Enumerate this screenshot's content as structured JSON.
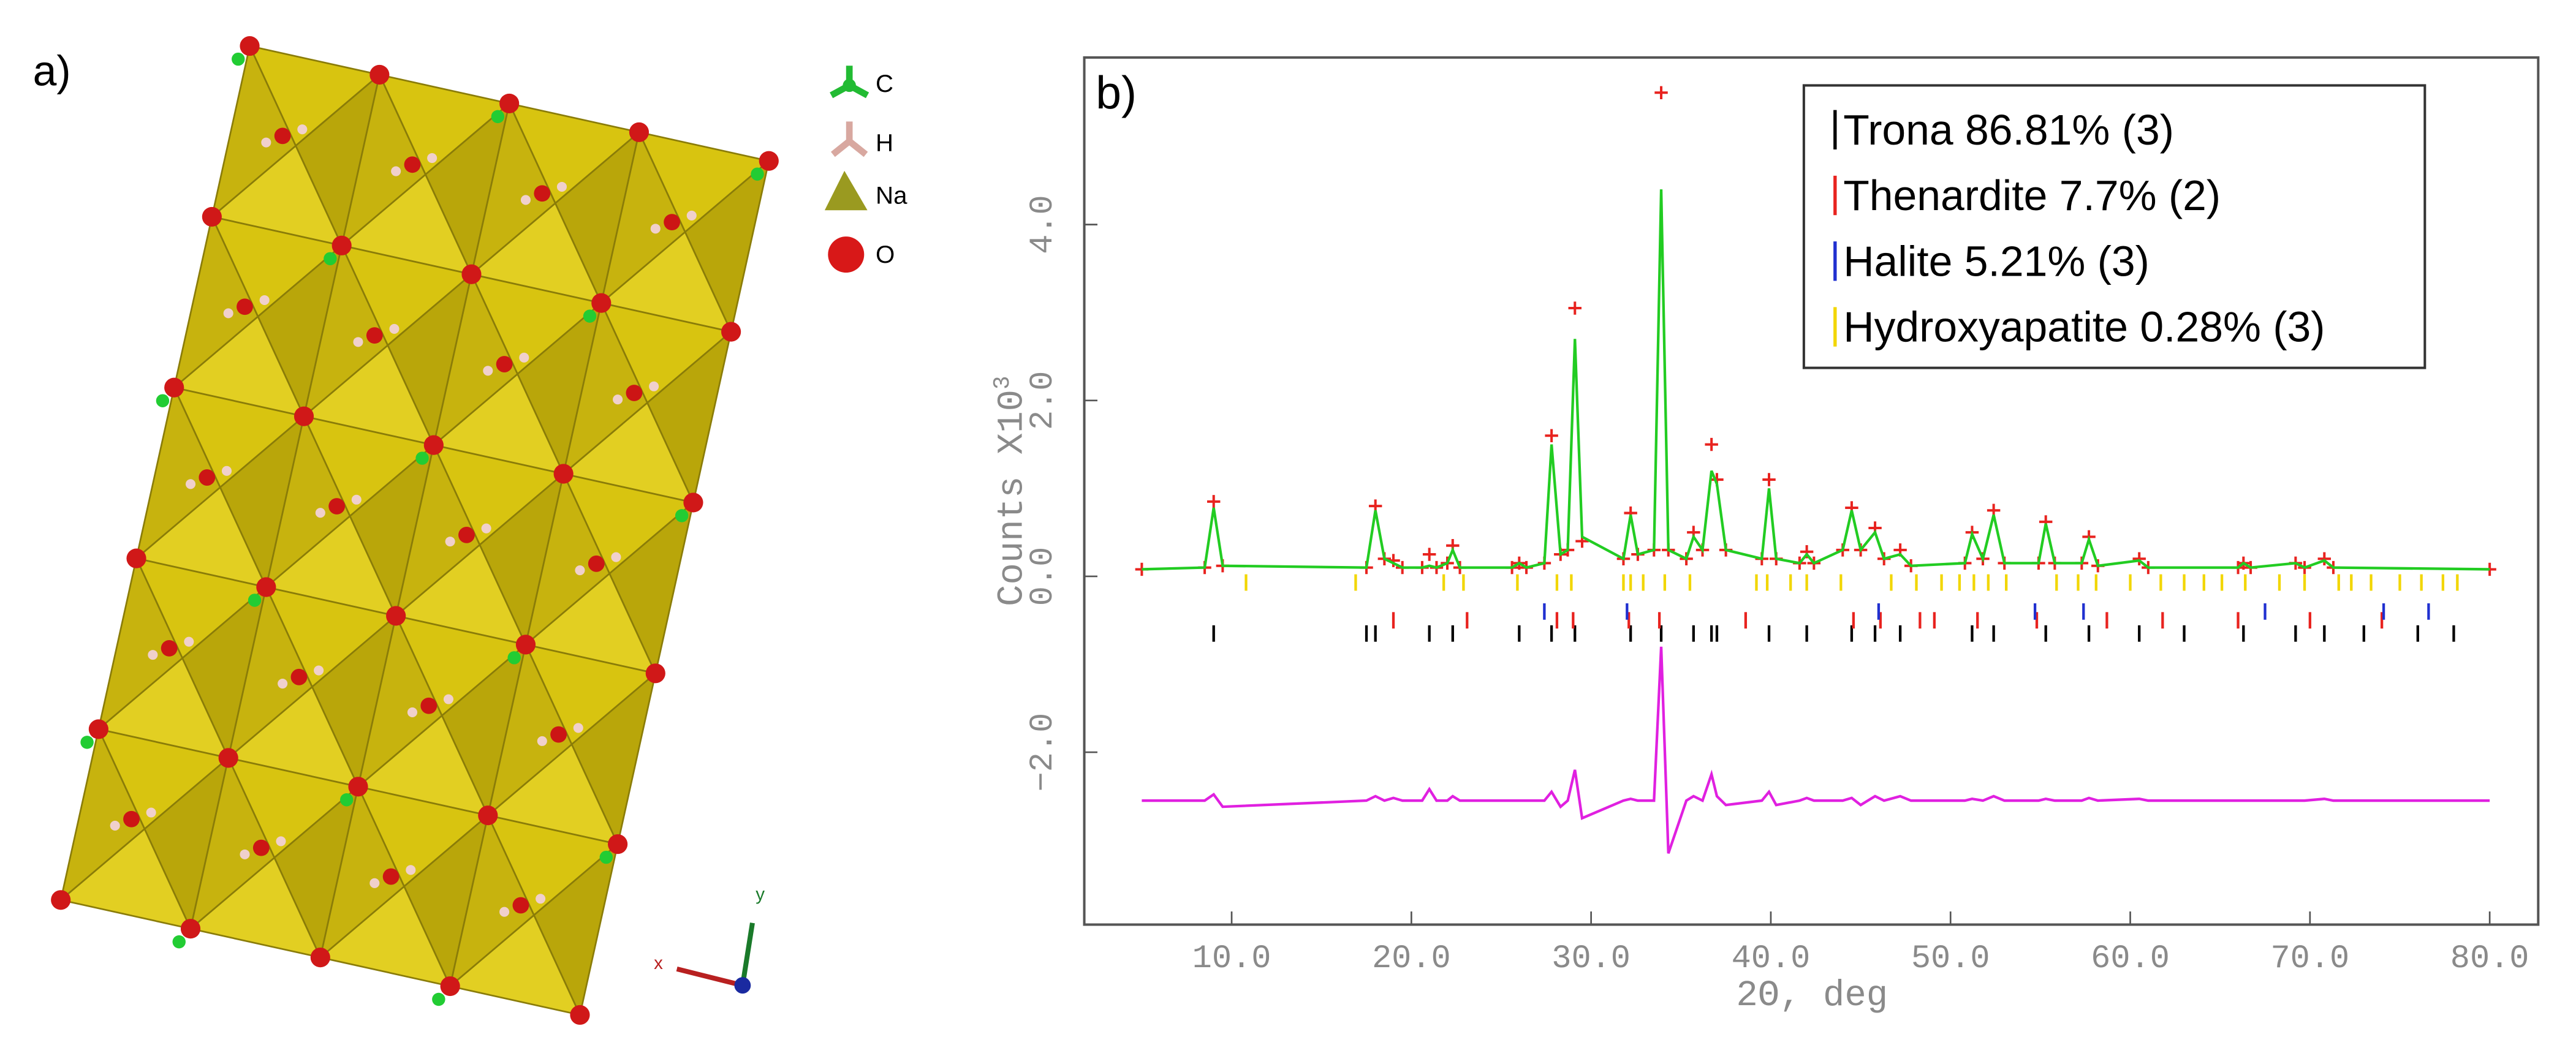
{
  "structure": {
    "label": "a)",
    "legend": [
      "C",
      "H",
      "Na",
      "O"
    ],
    "axes": [
      "x",
      "y"
    ]
  },
  "chart_data": {
    "type": "rietveld",
    "label": "b)",
    "xlabel": "2Θ, deg",
    "ylabel": "Counts X10",
    "ylabel_exponent": "3",
    "xlim": [
      1.8,
      82.7
    ],
    "ylim": [
      -3.96,
      5.9
    ],
    "xticks": [
      {
        "value": 10,
        "label": "10.0"
      },
      {
        "value": 20,
        "label": "20.0"
      },
      {
        "value": 30,
        "label": "30.0"
      },
      {
        "value": 40,
        "label": "40.0"
      },
      {
        "value": 50,
        "label": "50.0"
      },
      {
        "value": 60,
        "label": "60.0"
      },
      {
        "value": 70,
        "label": "70.0"
      },
      {
        "value": 80,
        "label": "80.0"
      }
    ],
    "yticks": [
      {
        "value": -2,
        "label": "−2.0"
      },
      {
        "value": 0,
        "label": "0.0"
      },
      {
        "value": 2,
        "label": "2.0"
      },
      {
        "value": 4,
        "label": "4.0"
      }
    ],
    "x": [
      5,
      8.5,
      9.0,
      9.5,
      17.5,
      18.0,
      18.5,
      19.0,
      19.5,
      20.6,
      21.0,
      21.4,
      22.0,
      22.3,
      22.7,
      25.6,
      26.0,
      26.4,
      27.4,
      27.8,
      28.3,
      28.7,
      29.1,
      29.5,
      31.8,
      32.2,
      32.6,
      33.5,
      33.9,
      34.3,
      35.3,
      35.7,
      36.2,
      36.7,
      37.0,
      37.5,
      39.5,
      39.9,
      40.3,
      41.6,
      42.0,
      42.4,
      44.0,
      44.5,
      45.0,
      45.8,
      46.3,
      47.2,
      47.8,
      50.8,
      51.2,
      51.8,
      52.4,
      53.0,
      54.9,
      55.3,
      55.8,
      57.3,
      57.7,
      58.2,
      60.5,
      61.0,
      66.0,
      66.3,
      66.7,
      69.2,
      69.7,
      70.8,
      71.3,
      80
    ],
    "series": [
      {
        "role": "observed",
        "color": "#e8231f",
        "values": [
          0.08,
          0.1,
          0.85,
          0.12,
          0.1,
          0.8,
          0.2,
          0.18,
          0.1,
          0.1,
          0.25,
          0.1,
          0.15,
          0.35,
          0.1,
          0.1,
          0.15,
          0.1,
          0.15,
          1.6,
          0.25,
          0.3,
          3.05,
          0.4,
          0.2,
          0.72,
          0.25,
          0.3,
          5.5,
          0.3,
          0.2,
          0.5,
          0.3,
          1.5,
          1.1,
          0.3,
          0.2,
          1.1,
          0.2,
          0.15,
          0.28,
          0.15,
          0.3,
          0.78,
          0.3,
          0.55,
          0.2,
          0.3,
          0.12,
          0.15,
          0.5,
          0.2,
          0.75,
          0.15,
          0.15,
          0.62,
          0.15,
          0.15,
          0.45,
          0.12,
          0.2,
          0.1,
          0.1,
          0.15,
          0.1,
          0.15,
          0.1,
          0.2,
          0.1,
          0.08
        ]
      },
      {
        "role": "calculated",
        "color": "#22cc22",
        "values": [
          0.08,
          0.1,
          0.78,
          0.12,
          0.1,
          0.75,
          0.2,
          0.15,
          0.1,
          0.1,
          0.12,
          0.1,
          0.15,
          0.3,
          0.1,
          0.1,
          0.15,
          0.1,
          0.15,
          1.5,
          0.25,
          0.3,
          2.7,
          0.45,
          0.2,
          0.7,
          0.25,
          0.3,
          4.4,
          0.3,
          0.2,
          0.45,
          0.3,
          1.2,
          1.05,
          0.3,
          0.2,
          1.0,
          0.2,
          0.15,
          0.25,
          0.15,
          0.3,
          0.75,
          0.3,
          0.5,
          0.2,
          0.25,
          0.12,
          0.15,
          0.48,
          0.2,
          0.7,
          0.15,
          0.15,
          0.6,
          0.15,
          0.15,
          0.42,
          0.12,
          0.18,
          0.1,
          0.1,
          0.15,
          0.1,
          0.15,
          0.1,
          0.18,
          0.1,
          0.08
        ]
      },
      {
        "role": "difference",
        "color": "#e020e0",
        "values": [
          -2.55,
          -2.55,
          -2.48,
          -2.62,
          -2.55,
          -2.5,
          -2.55,
          -2.52,
          -2.55,
          -2.55,
          -2.42,
          -2.55,
          -2.55,
          -2.5,
          -2.55,
          -2.55,
          -2.55,
          -2.55,
          -2.55,
          -2.45,
          -2.62,
          -2.55,
          -2.2,
          -2.75,
          -2.55,
          -2.53,
          -2.55,
          -2.55,
          -0.8,
          -3.15,
          -2.55,
          -2.5,
          -2.55,
          -2.25,
          -2.5,
          -2.6,
          -2.55,
          -2.45,
          -2.6,
          -2.55,
          -2.52,
          -2.55,
          -2.55,
          -2.52,
          -2.6,
          -2.5,
          -2.55,
          -2.5,
          -2.55,
          -2.55,
          -2.53,
          -2.55,
          -2.5,
          -2.55,
          -2.55,
          -2.53,
          -2.55,
          -2.55,
          -2.52,
          -2.55,
          -2.53,
          -2.55,
          -2.55,
          -2.55,
          -2.55,
          -2.55,
          -2.55,
          -2.53,
          -2.55,
          -2.55
        ]
      }
    ],
    "phases": [
      {
        "name": "Trona 86.81% (3)",
        "color": "#000000",
        "level": -0.65,
        "positions": [
          9.0,
          17.5,
          18.0,
          21.0,
          22.3,
          26.0,
          27.8,
          29.1,
          32.2,
          33.9,
          35.7,
          36.7,
          37.0,
          39.9,
          42.0,
          44.5,
          45.8,
          47.2,
          51.2,
          52.4,
          55.3,
          57.7,
          60.5,
          63.0,
          66.3,
          69.2,
          70.8,
          73.0,
          76.0,
          78.0
        ]
      },
      {
        "name": "Thenardite 7.7% (2)",
        "color": "#e8231f",
        "level": -0.5,
        "positions": [
          19.0,
          23.1,
          28.1,
          29.0,
          32.1,
          33.8,
          38.6,
          44.6,
          46.1,
          48.3,
          49.1,
          51.5,
          54.8,
          58.7,
          61.8,
          66.0,
          70.0,
          74.0
        ]
      },
      {
        "name": "Halite 5.21% (3)",
        "color": "#2030d0",
        "level": -0.4,
        "positions": [
          27.4,
          32.0,
          46.0,
          54.7,
          57.4,
          67.5,
          74.1,
          76.6
        ]
      },
      {
        "name": "Hydroxyapatite 0.28% (3)",
        "color": "#f2d600",
        "level": -0.07,
        "positions": [
          10.8,
          16.9,
          21.8,
          22.9,
          25.9,
          28.1,
          28.9,
          31.8,
          32.2,
          32.9,
          34.1,
          35.5,
          39.2,
          39.8,
          41.1,
          42.0,
          43.9,
          46.7,
          48.1,
          49.5,
          50.5,
          51.3,
          52.1,
          53.1,
          55.9,
          57.1,
          58.1,
          60.0,
          61.7,
          63.0,
          64.1,
          65.1,
          66.4,
          68.3,
          69.7,
          71.6,
          72.3,
          73.4,
          75.0,
          76.2,
          77.4,
          78.2
        ]
      }
    ]
  }
}
